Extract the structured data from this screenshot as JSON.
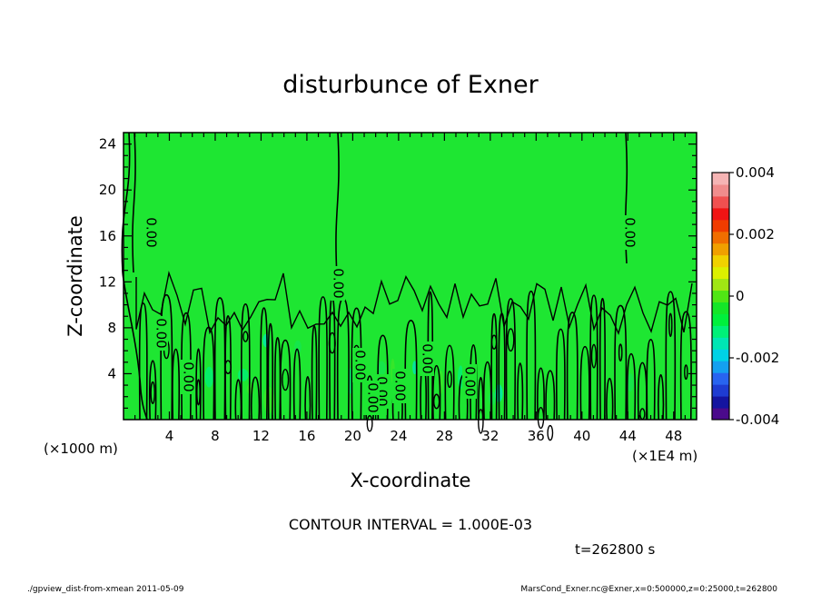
{
  "chart_data": {
    "type": "heatmap",
    "title": "disturbunce of Exner",
    "xlabel": "X-coordinate",
    "ylabel": "Z-coordinate",
    "xunit": "(×1E4 m)",
    "yunit": "(×1000 m)",
    "xlim": [
      0,
      50
    ],
    "ylim": [
      0,
      25
    ],
    "xticks": [
      "4",
      "8",
      "12",
      "16",
      "20",
      "24",
      "28",
      "32",
      "36",
      "40",
      "44",
      "48"
    ],
    "yticks": [
      "4",
      "8",
      "12",
      "16",
      "20",
      "24"
    ],
    "colorbar": {
      "min": -0.004,
      "max": 0.004,
      "labels": [
        "0.004",
        "0.002",
        "0",
        "-0.002",
        "-0.004"
      ],
      "colors": [
        "#4b0a8c",
        "#1414a0",
        "#1e3cd2",
        "#2864f0",
        "#14a0f0",
        "#00d2e6",
        "#00e6b4",
        "#00f078",
        "#00f03c",
        "#14e628",
        "#50e614",
        "#a0e614",
        "#dcf000",
        "#f0d200",
        "#f0a000",
        "#f06e00",
        "#f03c00",
        "#f01414",
        "#f05050",
        "#f08c8c",
        "#f5b4b4"
      ]
    },
    "contour_interval_text": "CONTOUR INTERVAL = 1.000E-03",
    "contour_labels": [
      "0.00",
      "0.00",
      "0.00",
      "0.00",
      "0.00",
      "0.00",
      "0.00",
      "0.00",
      "0.00",
      "0.00",
      "0.00"
    ],
    "background_value": 0,
    "time_text": "t=262800 s"
  },
  "footer": {
    "left": "./gpview_dist-from-xmean  2011-05-09",
    "right": "MarsCond_Exner.nc@Exner,x=0:500000,z=0:25000,t=262800"
  },
  "colors": {
    "field": "#1ee632",
    "contour": "#000000"
  }
}
